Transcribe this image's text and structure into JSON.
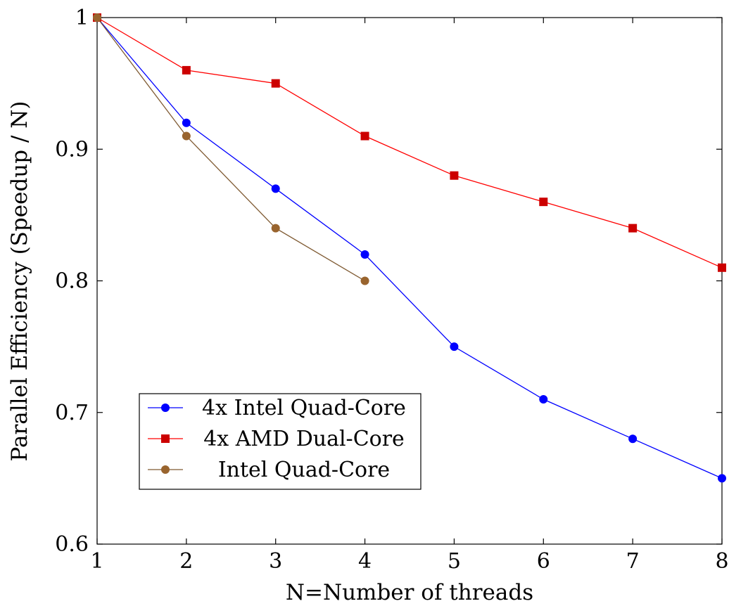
{
  "chart_data": {
    "type": "line",
    "title": "",
    "xlabel": "N=Number of threads",
    "ylabel": "Parallel Efficiency (Speedup / N)",
    "xlim": [
      1,
      8
    ],
    "ylim": [
      0.6,
      1.0
    ],
    "x_ticks": [
      "1",
      "2",
      "3",
      "4",
      "5",
      "6",
      "7",
      "8"
    ],
    "y_ticks": [
      "0.6",
      "0.7",
      "0.8",
      "0.9",
      "1"
    ],
    "grid": false,
    "legend_position": "lower-left",
    "series": [
      {
        "name": "4x Intel Quad-Core",
        "color": "#0000ff",
        "marker": "circle",
        "x": [
          1,
          2,
          3,
          4,
          5,
          6,
          7,
          8
        ],
        "y": [
          1.0,
          0.92,
          0.87,
          0.82,
          0.75,
          0.71,
          0.68,
          0.65
        ]
      },
      {
        "name": "4x AMD Dual-Core",
        "color": "#ff0000",
        "marker_color": "#cc0000",
        "marker": "square",
        "x": [
          1,
          2,
          3,
          4,
          5,
          6,
          7,
          8
        ],
        "y": [
          1.0,
          0.96,
          0.95,
          0.91,
          0.88,
          0.86,
          0.84,
          0.81
        ]
      },
      {
        "name": "Intel Quad-Core",
        "color": "#7f5a32",
        "marker_color": "#99642e",
        "marker": "circle",
        "x": [
          1,
          2,
          3,
          4
        ],
        "y": [
          1.0,
          0.91,
          0.84,
          0.8
        ]
      }
    ]
  }
}
